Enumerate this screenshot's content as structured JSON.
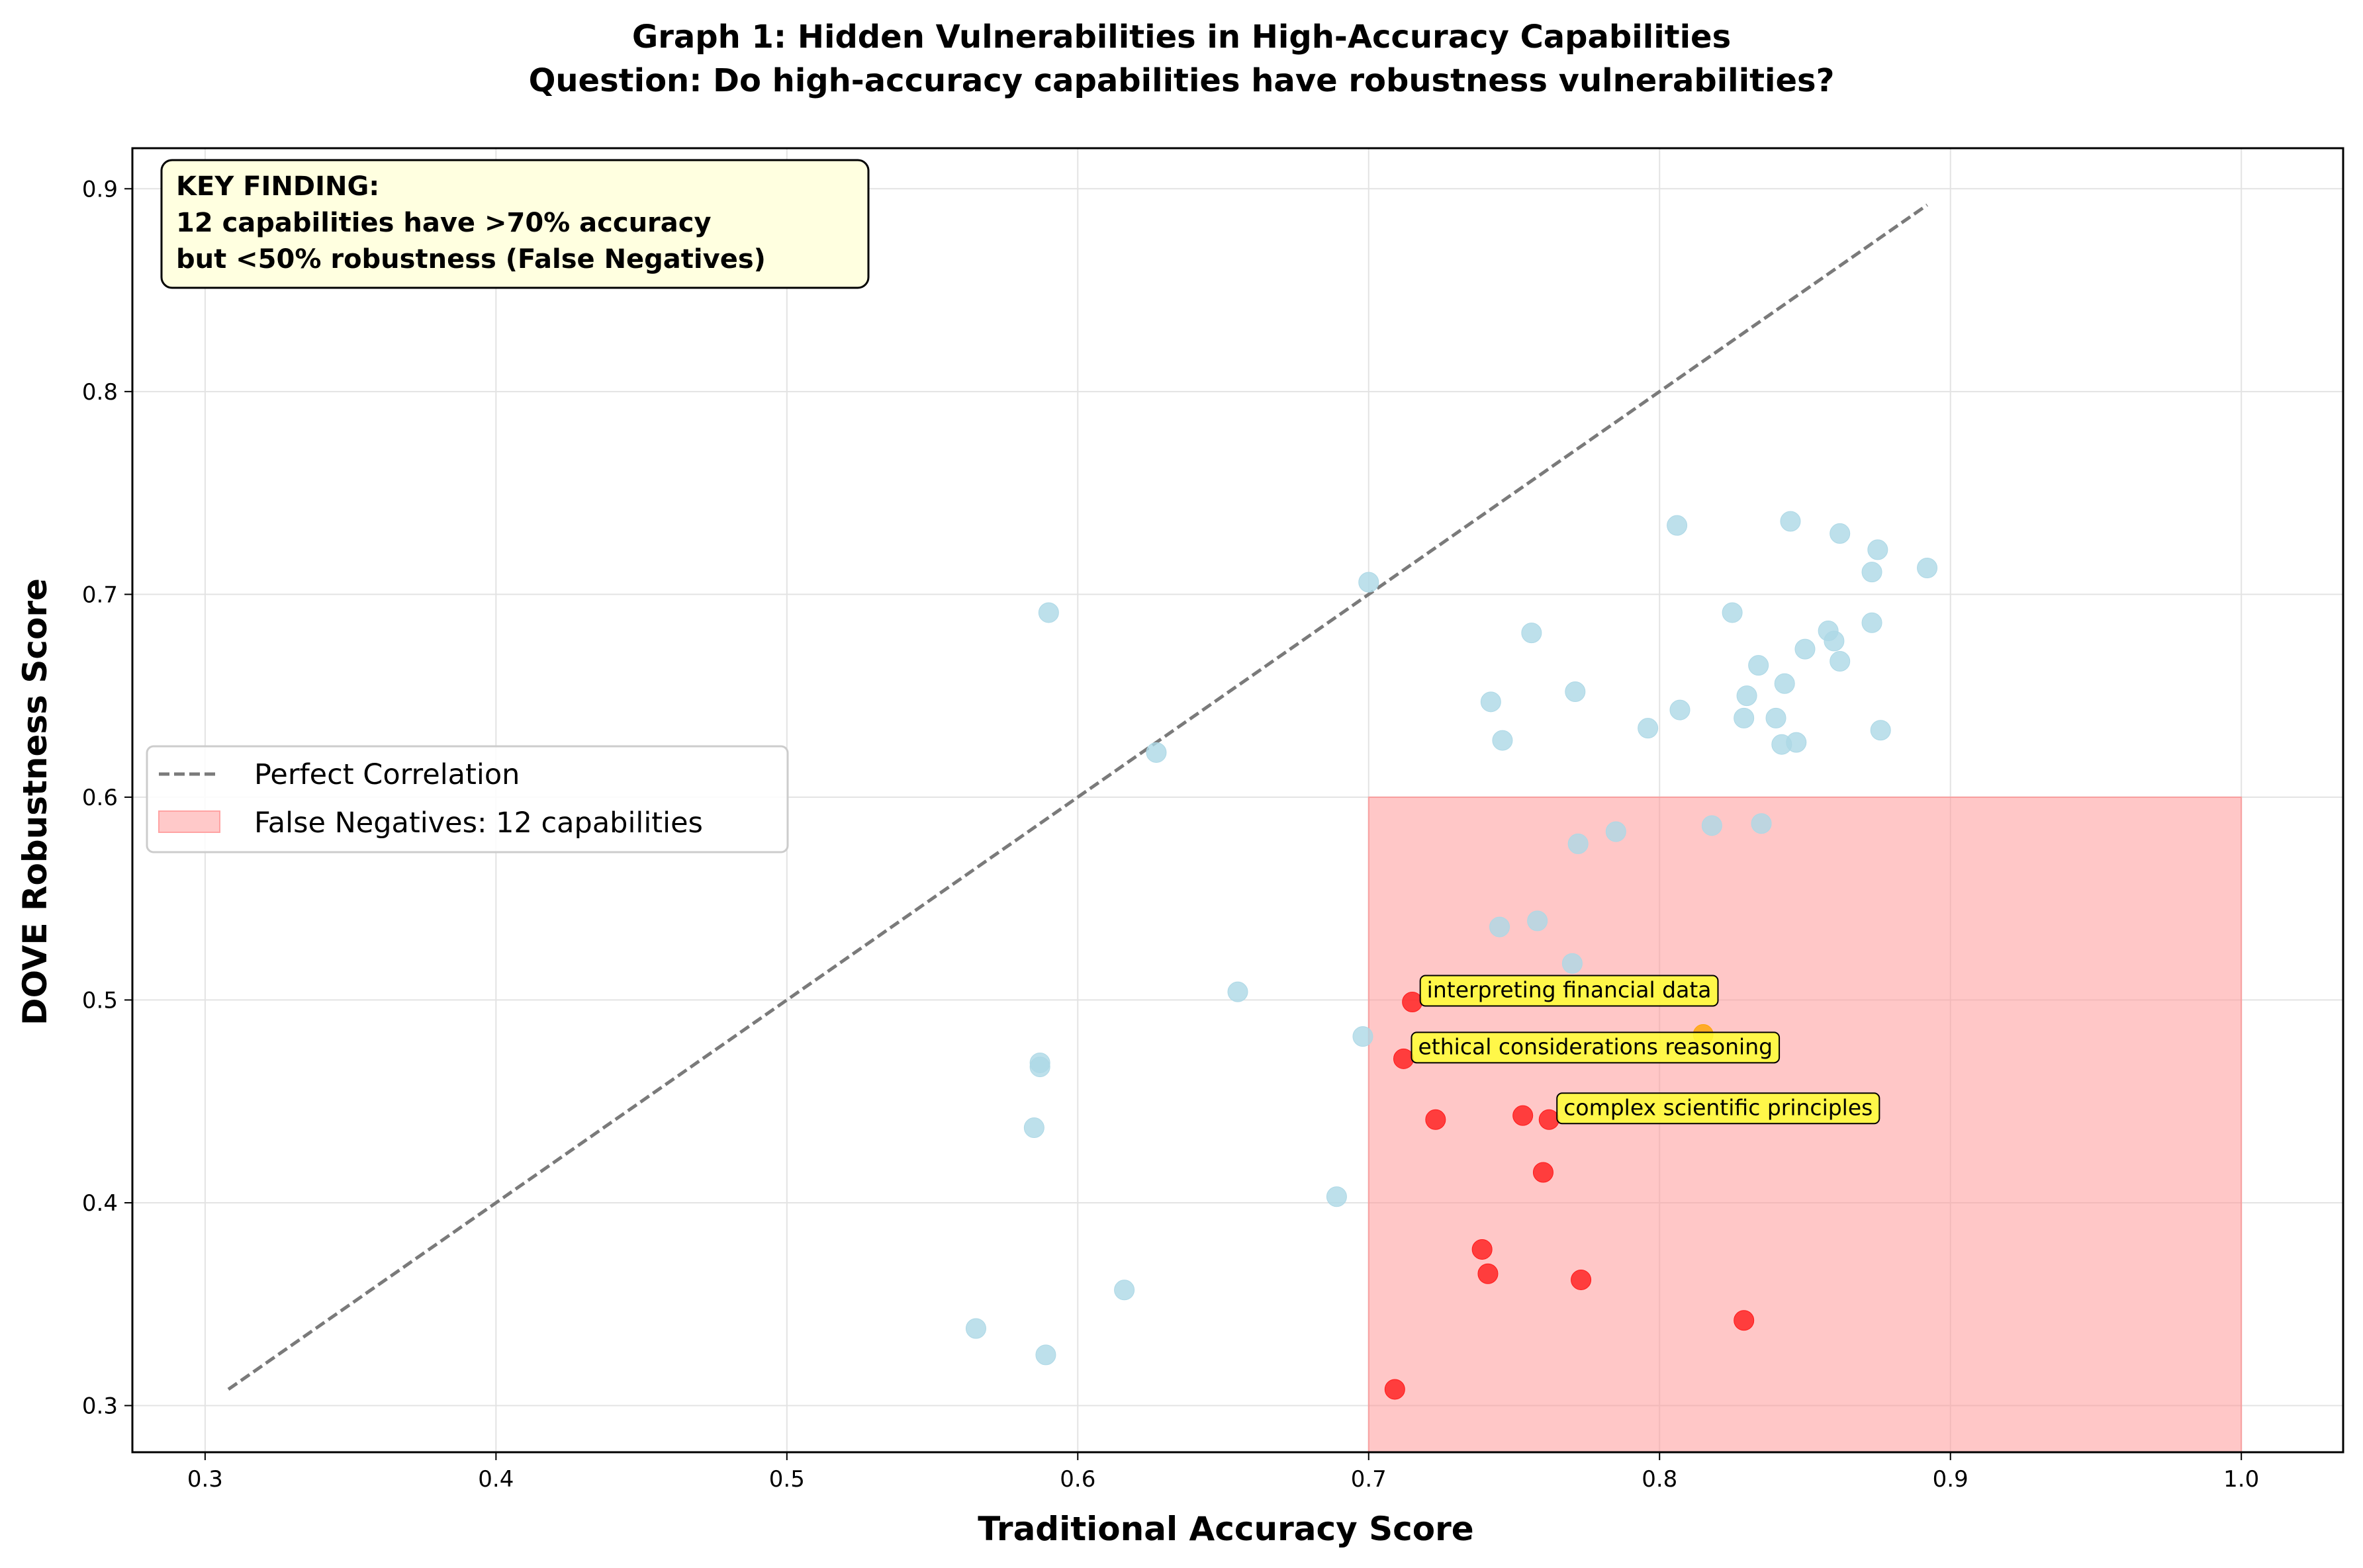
{
  "chart_data": {
    "type": "scatter",
    "title": "Graph 1: Hidden Vulnerabilities in High-Accuracy Capabilities",
    "subtitle": "Question: Do high-accuracy capabilities have robustness vulnerabilities?",
    "xlabel": "Traditional Accuracy Score",
    "ylabel": "DOVE Robustness Score",
    "xlim": [
      0.275,
      1.035
    ],
    "ylim": [
      0.277,
      0.92
    ],
    "xticks": [
      "0.3",
      "0.4",
      "0.5",
      "0.6",
      "0.7",
      "0.8",
      "0.9",
      "1.0"
    ],
    "yticks": [
      "0.3",
      "0.4",
      "0.5",
      "0.6",
      "0.7",
      "0.8",
      "0.9"
    ],
    "grid": true,
    "legend_position": "center-left",
    "legend": [
      {
        "label": "Perfect Correlation",
        "kind": "dashed-line",
        "color": "#7a7a7a"
      },
      {
        "label": "False Negatives: 12 capabilities",
        "kind": "patch",
        "color": "#ffb3b3"
      }
    ],
    "key_finding": {
      "line1": "KEY FINDING:",
      "line2": "12 capabilities have >70% accuracy",
      "line3": "but <50% robustness (False Negatives)"
    },
    "reference_line": {
      "name": "Perfect Correlation",
      "x": [
        0.308,
        0.892
      ],
      "y": [
        0.308,
        0.892
      ]
    },
    "highlight_region": {
      "name": "False Negatives: 12 capabilities",
      "x": [
        0.7,
        1.0
      ],
      "y": [
        0.277,
        0.6
      ],
      "color": "#ff9999"
    },
    "series": [
      {
        "color": "#add8e6",
        "points": [
          {
            "x": 0.59,
            "y": 0.691
          },
          {
            "x": 0.7,
            "y": 0.706
          },
          {
            "x": 0.627,
            "y": 0.622
          },
          {
            "x": 0.806,
            "y": 0.734
          },
          {
            "x": 0.845,
            "y": 0.736
          },
          {
            "x": 0.862,
            "y": 0.73
          },
          {
            "x": 0.875,
            "y": 0.722
          },
          {
            "x": 0.892,
            "y": 0.713
          },
          {
            "x": 0.873,
            "y": 0.711
          },
          {
            "x": 0.825,
            "y": 0.691
          },
          {
            "x": 0.873,
            "y": 0.686
          },
          {
            "x": 0.858,
            "y": 0.682
          },
          {
            "x": 0.86,
            "y": 0.677
          },
          {
            "x": 0.85,
            "y": 0.673
          },
          {
            "x": 0.862,
            "y": 0.667
          },
          {
            "x": 0.834,
            "y": 0.665
          },
          {
            "x": 0.843,
            "y": 0.656
          },
          {
            "x": 0.83,
            "y": 0.65
          },
          {
            "x": 0.771,
            "y": 0.652
          },
          {
            "x": 0.742,
            "y": 0.647
          },
          {
            "x": 0.807,
            "y": 0.643
          },
          {
            "x": 0.84,
            "y": 0.639
          },
          {
            "x": 0.829,
            "y": 0.639
          },
          {
            "x": 0.796,
            "y": 0.634
          },
          {
            "x": 0.876,
            "y": 0.633
          },
          {
            "x": 0.847,
            "y": 0.627
          },
          {
            "x": 0.842,
            "y": 0.626
          },
          {
            "x": 0.746,
            "y": 0.628
          },
          {
            "x": 0.756,
            "y": 0.681
          },
          {
            "x": 0.772,
            "y": 0.577
          },
          {
            "x": 0.785,
            "y": 0.583
          },
          {
            "x": 0.818,
            "y": 0.586
          },
          {
            "x": 0.835,
            "y": 0.587
          },
          {
            "x": 0.745,
            "y": 0.536
          },
          {
            "x": 0.758,
            "y": 0.539
          },
          {
            "x": 0.77,
            "y": 0.518
          },
          {
            "x": 0.655,
            "y": 0.504
          },
          {
            "x": 0.698,
            "y": 0.482
          },
          {
            "x": 0.587,
            "y": 0.469
          },
          {
            "x": 0.587,
            "y": 0.467
          },
          {
            "x": 0.585,
            "y": 0.437
          },
          {
            "x": 0.689,
            "y": 0.403
          },
          {
            "x": 0.616,
            "y": 0.357
          },
          {
            "x": 0.565,
            "y": 0.338
          },
          {
            "x": 0.589,
            "y": 0.325
          }
        ]
      },
      {
        "color": "#ff1a1a",
        "points": [
          {
            "x": 0.715,
            "y": 0.499
          },
          {
            "x": 0.712,
            "y": 0.471
          },
          {
            "x": 0.723,
            "y": 0.441
          },
          {
            "x": 0.753,
            "y": 0.443
          },
          {
            "x": 0.762,
            "y": 0.441
          },
          {
            "x": 0.76,
            "y": 0.415
          },
          {
            "x": 0.739,
            "y": 0.377
          },
          {
            "x": 0.741,
            "y": 0.365
          },
          {
            "x": 0.773,
            "y": 0.362
          },
          {
            "x": 0.829,
            "y": 0.342
          },
          {
            "x": 0.709,
            "y": 0.308
          }
        ]
      },
      {
        "color": "#ffa500",
        "points": [
          {
            "x": 0.815,
            "y": 0.483
          }
        ]
      }
    ],
    "annotations": [
      {
        "text": "interpreting financial data",
        "x": 0.715,
        "y": 0.499
      },
      {
        "text": "ethical considerations reasoning",
        "x": 0.712,
        "y": 0.471
      },
      {
        "text": "complex scientific principles",
        "x": 0.762,
        "y": 0.441
      }
    ]
  }
}
